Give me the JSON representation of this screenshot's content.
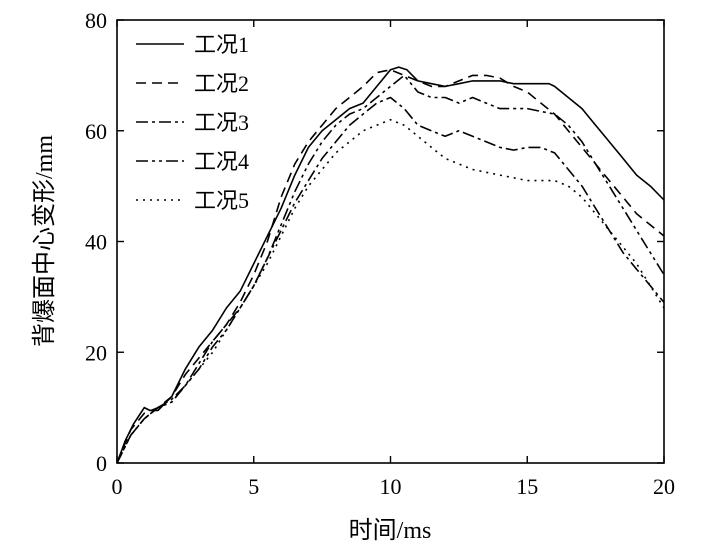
{
  "chart_data": {
    "type": "line",
    "title": "",
    "xlabel": "时间/ms",
    "ylabel": "背爆面中心变形/mm",
    "xlim": [
      0,
      20
    ],
    "ylim": [
      0,
      80
    ],
    "xticks": [
      0,
      5,
      10,
      15,
      20
    ],
    "yticks": [
      0,
      20,
      40,
      60,
      80
    ],
    "grid": false,
    "legend_position": "top-left",
    "series": [
      {
        "name": "工况1",
        "dash": "solid",
        "x": [
          0,
          0.3,
          0.6,
          1.0,
          1.2,
          1.5,
          2.0,
          2.5,
          3.0,
          3.5,
          4.0,
          4.5,
          5.0,
          5.5,
          6.0,
          6.5,
          7.0,
          7.5,
          8.0,
          8.5,
          9.0,
          9.5,
          10.0,
          10.3,
          10.6,
          11.0,
          11.5,
          12.0,
          12.5,
          13.0,
          13.5,
          14.0,
          14.5,
          15.0,
          15.5,
          15.8,
          16.0,
          16.5,
          17.0,
          17.5,
          18.0,
          18.5,
          19.0,
          19.5,
          20.0
        ],
        "y": [
          0,
          4,
          7,
          10,
          9.5,
          9.5,
          12,
          17,
          21,
          24,
          28,
          31,
          36,
          41,
          46,
          52,
          57,
          60,
          62,
          64,
          65,
          68,
          71,
          71.5,
          71,
          69,
          68.5,
          68,
          68.5,
          69,
          69,
          69,
          68.5,
          68.5,
          68.5,
          68.5,
          68,
          66,
          64,
          61,
          58,
          55,
          52,
          50,
          47.5
        ]
      },
      {
        "name": "工况2",
        "dash": "10,6",
        "x": [
          0,
          0.5,
          1.0,
          1.5,
          2.0,
          2.5,
          3.0,
          3.5,
          4.0,
          4.5,
          5.0,
          5.5,
          6.0,
          6.5,
          7.0,
          7.5,
          8.0,
          8.5,
          9.0,
          9.5,
          10.0,
          10.5,
          11.0,
          11.5,
          12.0,
          12.5,
          13.0,
          13.5,
          14.0,
          14.5,
          15.0,
          15.5,
          16.0,
          16.5,
          17.0,
          17.5,
          18.0,
          18.5,
          19.0,
          19.5,
          20.0
        ],
        "y": [
          0,
          6,
          9,
          10,
          12,
          16,
          19,
          22,
          25,
          29,
          34,
          40,
          48,
          54,
          58,
          61,
          64,
          66,
          68,
          70.5,
          71,
          70,
          69,
          68,
          68,
          69,
          70,
          70,
          69.5,
          68,
          67,
          65,
          63,
          60,
          57,
          54,
          51,
          48,
          45,
          43,
          41
        ]
      },
      {
        "name": "工况3",
        "dash": "12,4,3,4",
        "x": [
          0,
          0.5,
          1.0,
          1.5,
          2.0,
          2.5,
          3.0,
          3.5,
          4.0,
          4.5,
          5.0,
          5.5,
          6.0,
          6.5,
          7.0,
          7.5,
          8.0,
          8.5,
          9.0,
          9.5,
          10.0,
          10.5,
          11.0,
          11.5,
          12.0,
          12.5,
          13.0,
          13.5,
          14.0,
          14.5,
          15.0,
          15.5,
          16.0,
          16.5,
          17.0,
          17.5,
          18.0,
          18.5,
          19.0,
          19.5,
          20.0
        ],
        "y": [
          0,
          5,
          8,
          10,
          11.5,
          14,
          18,
          22,
          25,
          28,
          32,
          37,
          42,
          47,
          51,
          55,
          58,
          61,
          63,
          65,
          66,
          64,
          61,
          60,
          59,
          60,
          59,
          58,
          57,
          56.5,
          57,
          57,
          56,
          53,
          50,
          46,
          42,
          38,
          35,
          32,
          29
        ]
      },
      {
        "name": "工况4",
        "dash": "12,4,3,4,3,4",
        "x": [
          0,
          0.5,
          1.0,
          1.5,
          2.0,
          2.5,
          3.0,
          3.5,
          4.0,
          4.5,
          5.0,
          5.5,
          6.0,
          6.5,
          7.0,
          7.5,
          8.0,
          8.5,
          9.0,
          9.5,
          10.0,
          10.5,
          11.0,
          11.5,
          12.0,
          12.5,
          13.0,
          13.5,
          14.0,
          14.5,
          15.0,
          15.5,
          16.0,
          16.5,
          17.0,
          17.5,
          18.0,
          18.5,
          19.0,
          19.5,
          20.0
        ],
        "y": [
          0,
          5,
          8,
          10,
          11,
          14,
          17,
          21,
          24,
          28,
          32,
          37,
          43,
          49,
          54,
          58,
          61,
          63,
          64,
          66,
          68,
          70,
          67,
          66,
          66,
          65,
          66,
          65,
          64,
          64,
          64,
          63.5,
          63,
          61,
          58,
          54,
          50,
          46,
          42,
          38,
          34
        ]
      },
      {
        "name": "工况5",
        "dash": "2,5",
        "x": [
          0,
          0.5,
          1.0,
          1.5,
          2.0,
          2.5,
          3.0,
          3.5,
          4.0,
          4.5,
          5.0,
          5.5,
          6.0,
          6.5,
          7.0,
          7.5,
          8.0,
          8.5,
          9.0,
          9.5,
          10.0,
          10.5,
          11.0,
          11.5,
          12.0,
          12.5,
          13.0,
          13.5,
          14.0,
          14.5,
          15.0,
          15.5,
          16.0,
          16.5,
          17.0,
          17.5,
          18.0,
          18.5,
          19.0,
          19.5,
          20.0
        ],
        "y": [
          0,
          5,
          8,
          10,
          11,
          14,
          17,
          20,
          24,
          28,
          32,
          36,
          41,
          46,
          50,
          53,
          56,
          58,
          60,
          61,
          62,
          61,
          59,
          57,
          55,
          54,
          53,
          52.5,
          52,
          51.5,
          51,
          51,
          51,
          50,
          48,
          45,
          42,
          39,
          36,
          32,
          28
        ]
      }
    ]
  }
}
